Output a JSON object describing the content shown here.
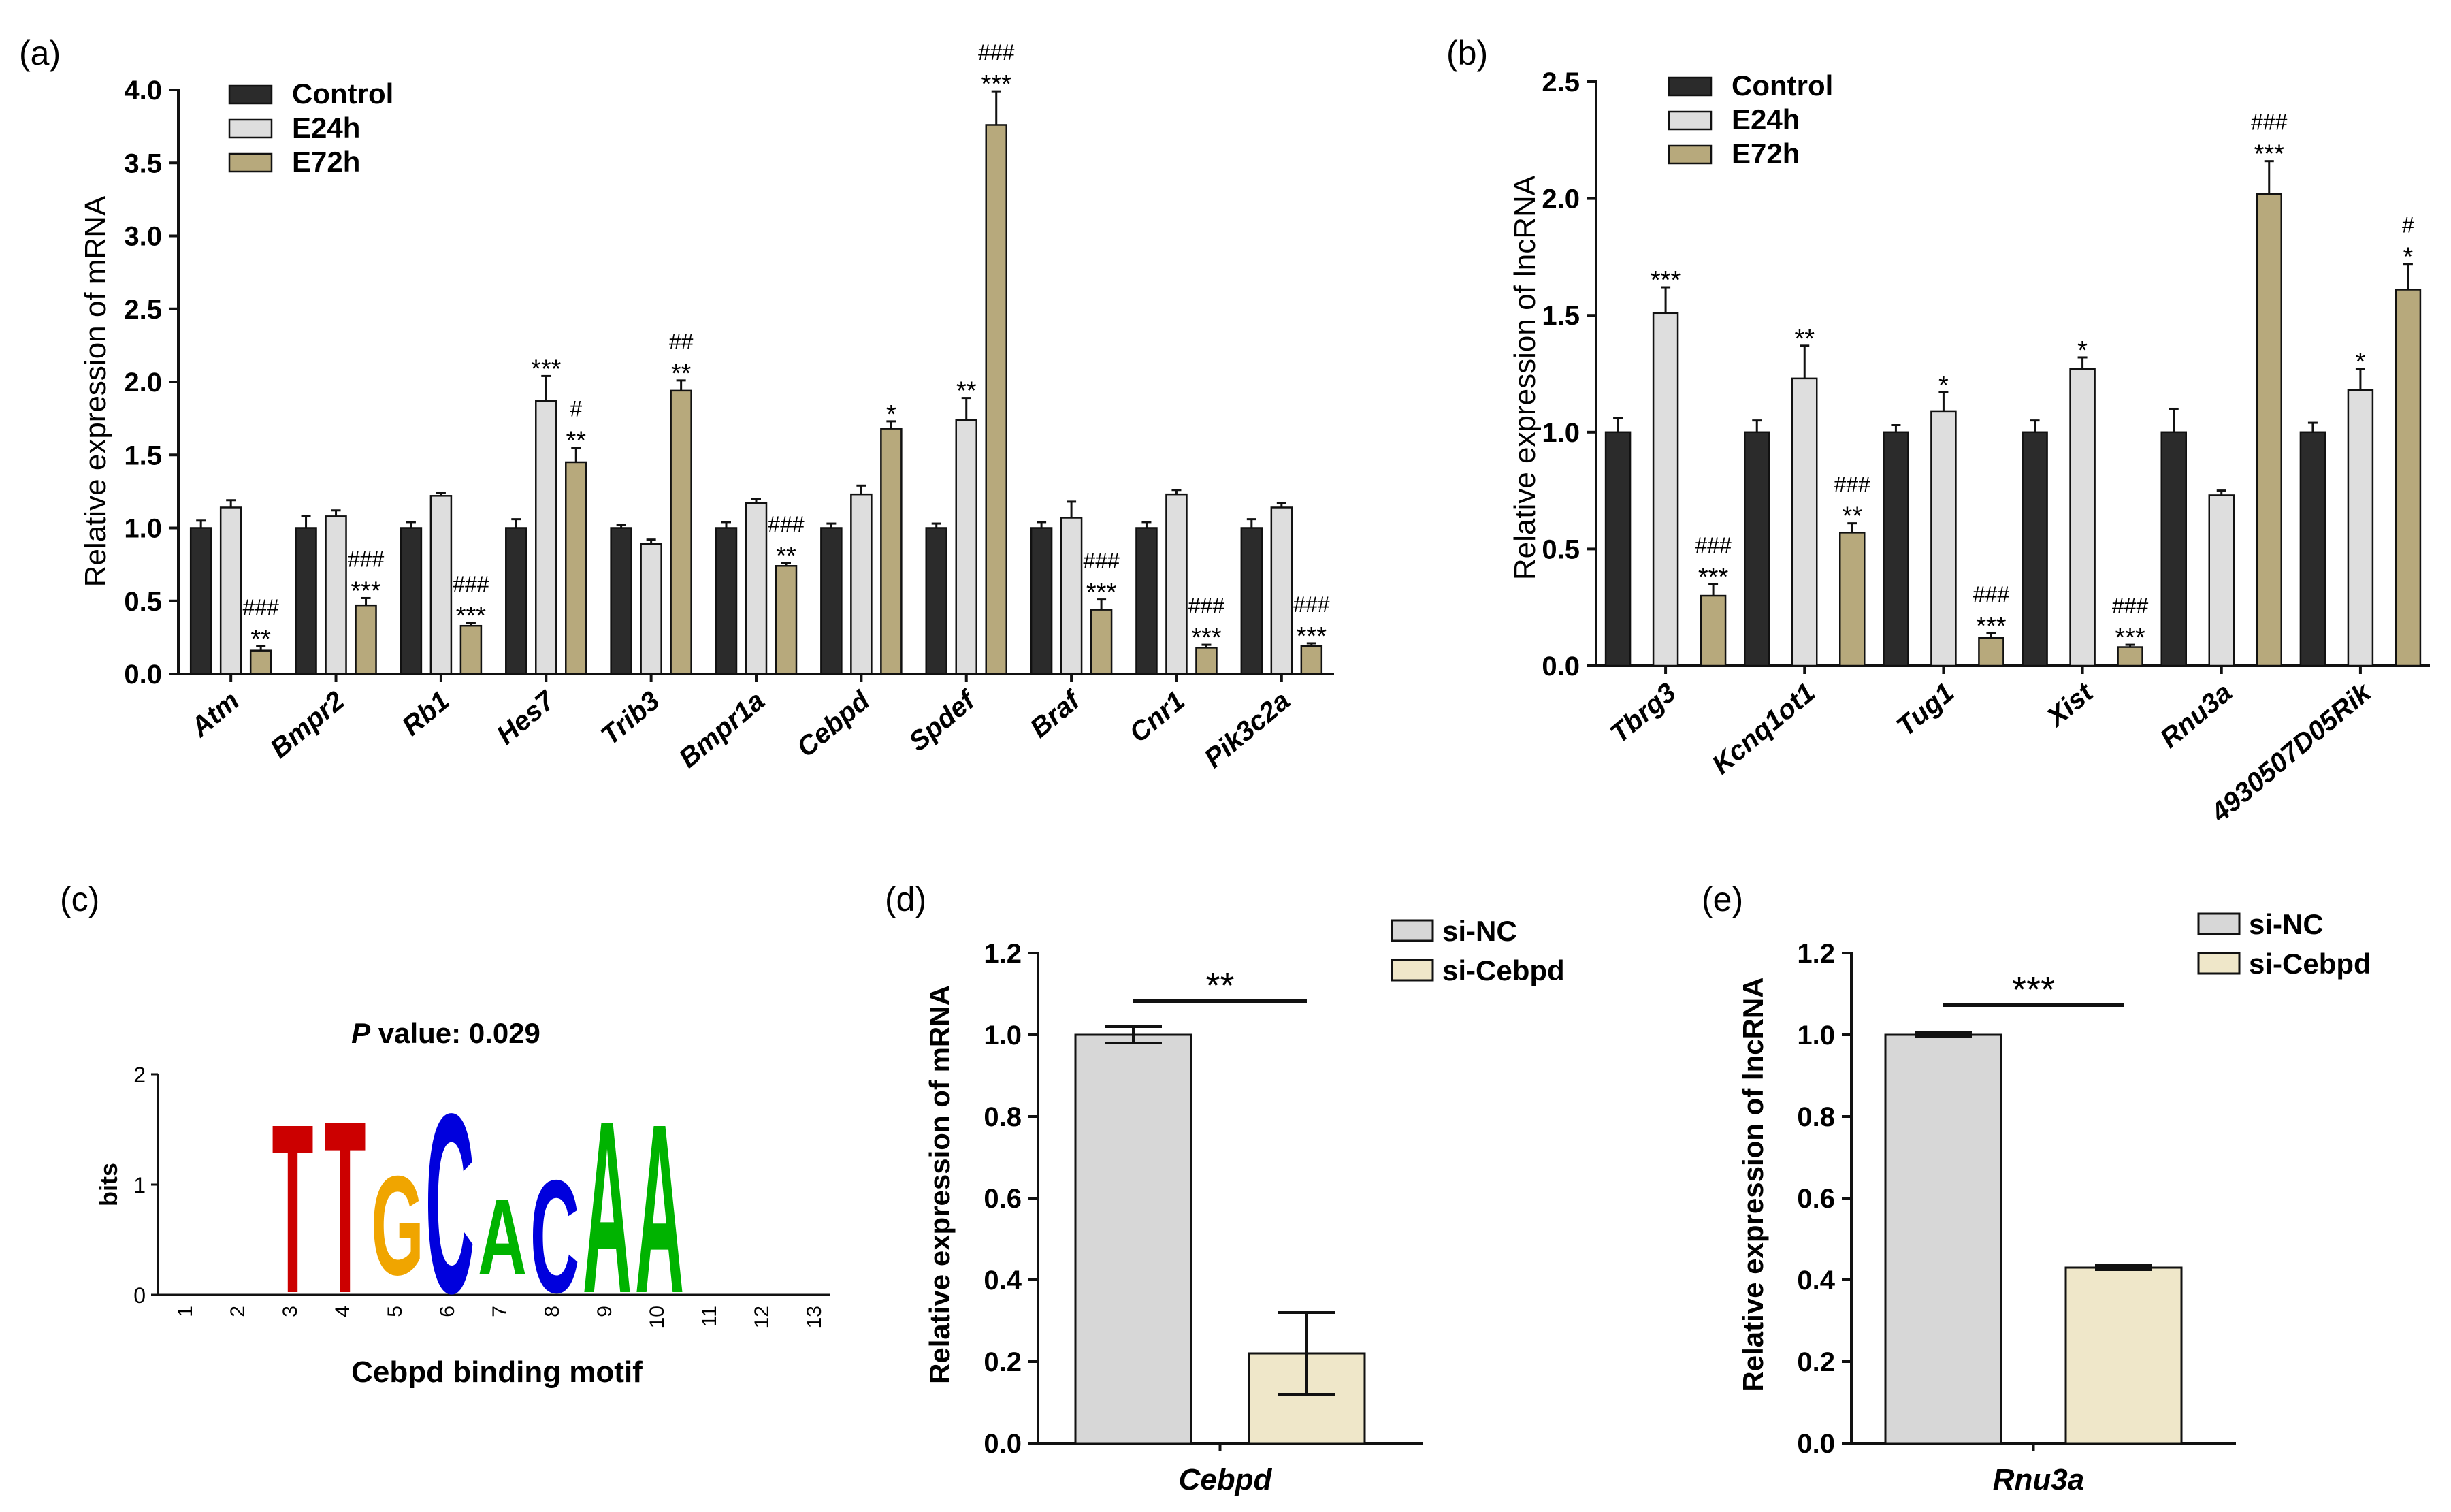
{
  "colors": {
    "control": "#2b2b2b",
    "e24h": "#dedede",
    "e72h": "#b7a97c",
    "si_nc": "#d7d7d7",
    "si_cebpd": "#efe7c9",
    "axis": "#111111",
    "logo_T": "#cc0000",
    "logo_G": "#f0a500",
    "logo_C": "#0000dd",
    "logo_A": "#00b300"
  },
  "chart_data": [
    {
      "id": "a",
      "panel_label": "(a)",
      "type": "bar",
      "ylabel": "Relative expression of mRNA",
      "ylim": [
        0,
        4.0
      ],
      "yticks": [
        "0.0",
        "0.5",
        "1.0",
        "1.5",
        "2.0",
        "2.5",
        "3.0",
        "3.5",
        "4.0"
      ],
      "categories": [
        "Atm",
        "Bmpr2",
        "Rb1",
        "Hes7",
        "Trib3",
        "Bmpr1a",
        "Cebpd",
        "Spdef",
        "Braf",
        "Cnr1",
        "Pik3c2a"
      ],
      "legend": [
        "Control",
        "E24h",
        "E72h"
      ],
      "series": [
        {
          "name": "Control",
          "values": [
            1.0,
            1.0,
            1.0,
            1.0,
            1.0,
            1.0,
            1.0,
            1.0,
            1.0,
            1.0,
            1.0
          ],
          "errors": [
            0.05,
            0.08,
            0.04,
            0.06,
            0.02,
            0.04,
            0.03,
            0.03,
            0.04,
            0.04,
            0.06
          ]
        },
        {
          "name": "E24h",
          "values": [
            1.14,
            1.08,
            1.22,
            1.87,
            0.89,
            1.17,
            1.23,
            1.74,
            1.07,
            1.23,
            1.14
          ],
          "errors": [
            0.05,
            0.04,
            0.02,
            0.17,
            0.03,
            0.03,
            0.06,
            0.15,
            0.11,
            0.03,
            0.03
          ]
        },
        {
          "name": "E72h",
          "values": [
            0.16,
            0.47,
            0.33,
            1.45,
            1.94,
            0.74,
            1.68,
            3.76,
            0.44,
            0.18,
            0.19
          ],
          "errors": [
            0.03,
            0.05,
            0.02,
            0.1,
            0.07,
            0.02,
            0.05,
            0.23,
            0.07,
            0.02,
            0.02
          ]
        }
      ],
      "annotations": [
        {
          "cat": 0,
          "series": 2,
          "lines": [
            "###",
            "**"
          ]
        },
        {
          "cat": 1,
          "series": 2,
          "lines": [
            "###",
            "***"
          ]
        },
        {
          "cat": 2,
          "series": 2,
          "lines": [
            "###",
            "***"
          ]
        },
        {
          "cat": 3,
          "series": 1,
          "lines": [
            "***"
          ]
        },
        {
          "cat": 3,
          "series": 2,
          "lines": [
            "#",
            "**"
          ]
        },
        {
          "cat": 4,
          "series": 2,
          "lines": [
            "##",
            "**"
          ]
        },
        {
          "cat": 5,
          "series": 2,
          "lines": [
            "###",
            "**"
          ]
        },
        {
          "cat": 6,
          "series": 2,
          "lines": [
            "*"
          ]
        },
        {
          "cat": 7,
          "series": 1,
          "lines": [
            "**"
          ]
        },
        {
          "cat": 7,
          "series": 2,
          "lines": [
            "###",
            "***"
          ]
        },
        {
          "cat": 8,
          "series": 2,
          "lines": [
            "###",
            "***"
          ]
        },
        {
          "cat": 9,
          "series": 2,
          "lines": [
            "###",
            "***"
          ]
        },
        {
          "cat": 10,
          "series": 2,
          "lines": [
            "###",
            "***"
          ]
        }
      ]
    },
    {
      "id": "b",
      "panel_label": "(b)",
      "type": "bar",
      "ylabel": "Relative expression of lncRNA",
      "ylim": [
        0,
        2.5
      ],
      "yticks": [
        "0.0",
        "0.5",
        "1.0",
        "1.5",
        "2.0",
        "2.5"
      ],
      "categories": [
        "Tbrg3",
        "Kcnq1ot1",
        "Tug1",
        "Xist",
        "Rnu3a",
        "4930507D05Rik"
      ],
      "legend": [
        "Control",
        "E24h",
        "E72h"
      ],
      "series": [
        {
          "name": "Control",
          "values": [
            1.0,
            1.0,
            1.0,
            1.0,
            1.0,
            1.0
          ],
          "errors": [
            0.06,
            0.05,
            0.03,
            0.05,
            0.1,
            0.04
          ]
        },
        {
          "name": "E24h",
          "values": [
            1.51,
            1.23,
            1.09,
            1.27,
            0.73,
            1.18
          ],
          "errors": [
            0.11,
            0.14,
            0.08,
            0.05,
            0.02,
            0.09
          ]
        },
        {
          "name": "E72h",
          "values": [
            0.3,
            0.57,
            0.12,
            0.08,
            2.02,
            1.61
          ],
          "errors": [
            0.05,
            0.04,
            0.02,
            0.01,
            0.14,
            0.11
          ]
        }
      ],
      "annotations": [
        {
          "cat": 0,
          "series": 1,
          "lines": [
            "***"
          ]
        },
        {
          "cat": 0,
          "series": 2,
          "lines": [
            "###",
            "***"
          ]
        },
        {
          "cat": 1,
          "series": 1,
          "lines": [
            "**"
          ]
        },
        {
          "cat": 1,
          "series": 2,
          "lines": [
            "###",
            "**"
          ]
        },
        {
          "cat": 2,
          "series": 1,
          "lines": [
            "*"
          ]
        },
        {
          "cat": 2,
          "series": 2,
          "lines": [
            "###",
            "***"
          ]
        },
        {
          "cat": 3,
          "series": 1,
          "lines": [
            "*"
          ]
        },
        {
          "cat": 3,
          "series": 2,
          "lines": [
            "###",
            "***"
          ]
        },
        {
          "cat": 4,
          "series": 2,
          "lines": [
            "###",
            "***"
          ]
        },
        {
          "cat": 5,
          "series": 1,
          "lines": [
            "*"
          ]
        },
        {
          "cat": 5,
          "series": 2,
          "lines": [
            "#",
            "*"
          ]
        }
      ]
    },
    {
      "id": "d",
      "panel_label": "(d)",
      "type": "bar",
      "ylabel": "Relative expression of mRNA",
      "xlabel": "Cebpd",
      "ylim": [
        0,
        1.2
      ],
      "yticks": [
        "0.0",
        "0.2",
        "0.4",
        "0.6",
        "0.8",
        "1.0",
        "1.2"
      ],
      "categories": [
        "si-NC",
        "si-Cebpd"
      ],
      "legend": [
        "si-NC",
        "si-Cebpd"
      ],
      "values": [
        1.0,
        0.22
      ],
      "errors": [
        0.02,
        0.1
      ],
      "significance": "**"
    },
    {
      "id": "e",
      "panel_label": "(e)",
      "type": "bar",
      "ylabel": "Relative expression of lncRNA",
      "xlabel": "Rnu3a",
      "ylim": [
        0,
        1.2
      ],
      "yticks": [
        "0.0",
        "0.2",
        "0.4",
        "0.6",
        "0.8",
        "1.0",
        "1.2"
      ],
      "categories": [
        "si-NC",
        "si-Cebpd"
      ],
      "legend": [
        "si-NC",
        "si-Cebpd"
      ],
      "values": [
        1.0,
        0.43
      ],
      "errors": [
        0.005,
        0.005
      ],
      "significance": "***"
    }
  ],
  "motif": {
    "panel_label": "(c)",
    "p_prefix": "P",
    "p_text": " value: 0.029",
    "ylabel": "bits",
    "yticks": [
      "0",
      "1",
      "2"
    ],
    "positions": [
      "1",
      "2",
      "3",
      "4",
      "5",
      "6",
      "7",
      "8",
      "9",
      "10",
      "11",
      "12",
      "13"
    ],
    "letters": [
      "T",
      "T",
      "G",
      "C",
      "A",
      "C",
      "A",
      "A"
    ],
    "caption": "Cebpd binding motif"
  }
}
